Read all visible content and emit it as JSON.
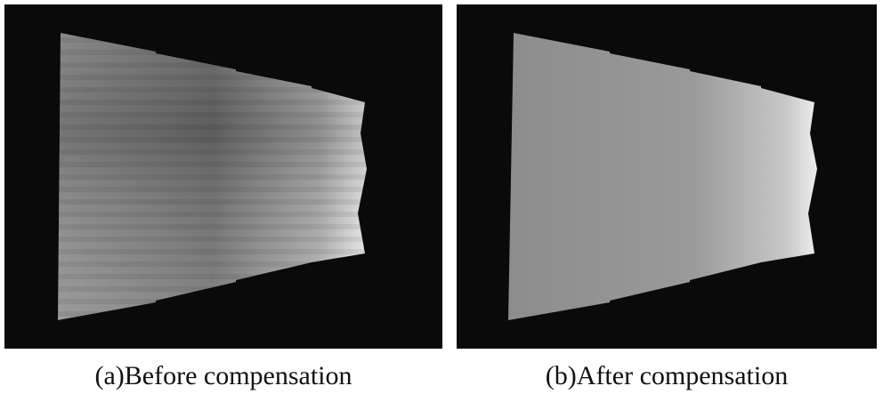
{
  "panels": [
    {
      "caption": "(a)Before compensation"
    },
    {
      "caption": "(b)After compensation"
    }
  ]
}
